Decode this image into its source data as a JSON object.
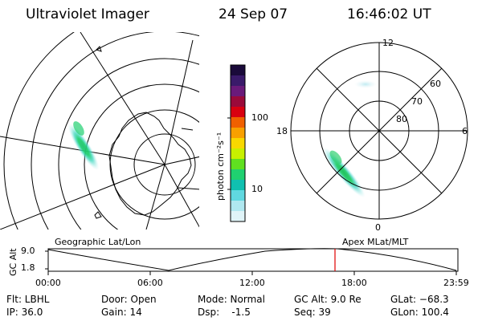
{
  "header": {
    "title": "Ultraviolet Imager",
    "date": "24 Sep 07",
    "time": "16:46:02 UT"
  },
  "colorbar": {
    "label": "photon cm⁻²s⁻¹",
    "ticks": [
      "100",
      "10"
    ],
    "colors": [
      "#1a0a3a",
      "#3a1a6a",
      "#6a1a7a",
      "#9a0a3a",
      "#d80010",
      "#f06000",
      "#f8a000",
      "#f8d800",
      "#c8f000",
      "#60e020",
      "#20d070",
      "#10c0b0",
      "#60d8e0",
      "#b0e8f0",
      "#e0f4f8"
    ]
  },
  "left_panel": {
    "label": "Geographic Lat/Lon"
  },
  "right_panel": {
    "label": "Apex MLat/MLT",
    "mlt_labels": {
      "top": "12",
      "left": "18",
      "right": "6",
      "bottom": "0"
    },
    "lat_labels": [
      "60",
      "70",
      "80"
    ]
  },
  "timeline": {
    "axis_label": "GC Alt",
    "y_ticks": [
      "9.0",
      "1.8"
    ],
    "x_ticks": [
      "00:00",
      "06:00",
      "12:00",
      "18:00",
      "23:59"
    ],
    "marker_color": "#e00000"
  },
  "info": {
    "flt": "Flt: LBHL",
    "ip": "IP: 36.0",
    "door": "Door: Open",
    "gain": "Gain: 14",
    "mode": "Mode: Normal",
    "dsp": "Dsp:    -1.5",
    "gcalt": "GC Alt: 9.0 Re",
    "seq": "Seq: 39",
    "glat": "GLat: −68.3",
    "glon": "GLon: 100.4"
  }
}
